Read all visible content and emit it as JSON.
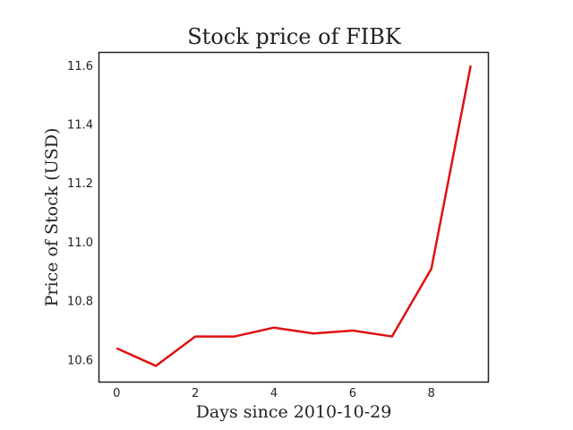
{
  "chart_data": {
    "type": "line",
    "title": "Stock price of FIBK",
    "xlabel": "Days since 2010-10-29",
    "ylabel": "Price of Stock (USD)",
    "xlim": [
      -0.45,
      9.45
    ],
    "ylim": [
      10.525,
      11.645
    ],
    "xticks": [
      0,
      2,
      4,
      6,
      8
    ],
    "yticks": [
      10.6,
      10.8,
      11.0,
      11.2,
      11.4,
      11.6
    ],
    "xtick_labels": [
      "0",
      "2",
      "4",
      "6",
      "8"
    ],
    "ytick_labels": [
      "10.6",
      "10.8",
      "11.0",
      "11.2",
      "11.4",
      "11.6"
    ],
    "grid": false,
    "series": [
      {
        "color": "#e01010",
        "x": [
          0,
          1,
          2,
          3,
          4,
          5,
          6,
          7,
          8,
          9
        ],
        "y": [
          10.64,
          10.58,
          10.68,
          10.68,
          10.71,
          10.69,
          10.7,
          10.68,
          10.91,
          11.6
        ]
      }
    ]
  }
}
